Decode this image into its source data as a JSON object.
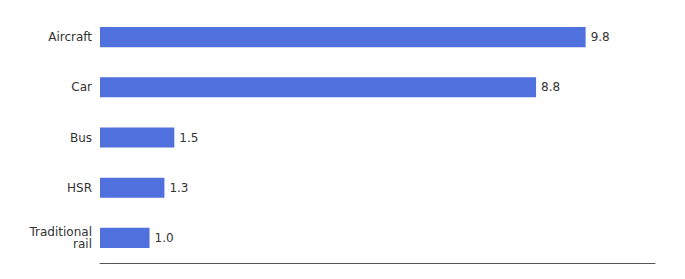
{
  "chart_data": {
    "type": "bar",
    "orientation": "horizontal",
    "categories": [
      "Aircraft",
      "Car",
      "Bus",
      "HSR",
      "Traditional\nrail"
    ],
    "values": [
      9.8,
      8.8,
      1.5,
      1.3,
      1.0
    ],
    "value_labels": [
      "9.8",
      "8.8",
      "1.5",
      "1.3",
      "1.0"
    ],
    "xlim": [
      0,
      11.2
    ],
    "data_labels": true,
    "tick_labels": "y",
    "grid": false
  }
}
